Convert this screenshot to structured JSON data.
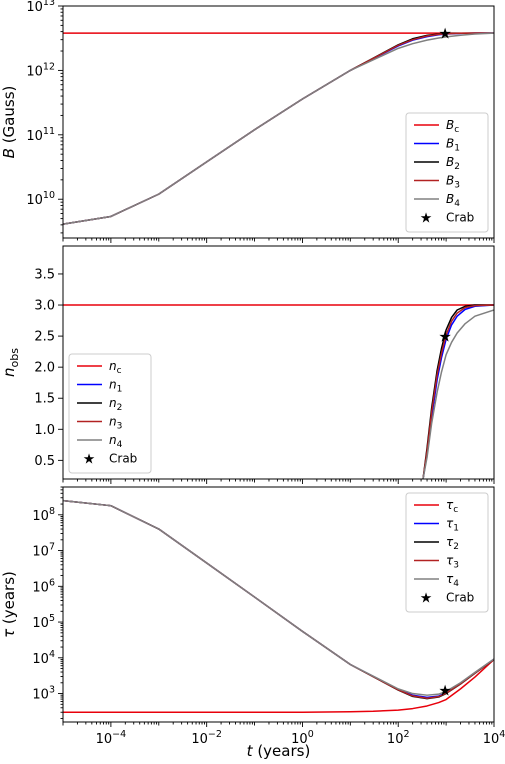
{
  "chart_data": [
    {
      "type": "line",
      "panel": "top",
      "ylabel_var": "B",
      "ylabel_unit": "(Gauss)",
      "xscale": "log",
      "yscale": "log",
      "xlim": [
        1e-05,
        10000
      ],
      "ylim": [
        2500000000,
        10000000000000
      ],
      "ytick_labels": [
        {
          "value": 10000000000,
          "base": "10",
          "exp": "10"
        },
        {
          "value": 100000000000,
          "base": "10",
          "exp": "11"
        },
        {
          "value": 1000000000000,
          "base": "10",
          "exp": "12"
        },
        {
          "value": 10000000000000,
          "base": "10",
          "exp": "13"
        }
      ],
      "legend_loc": "lower right",
      "series": [
        {
          "name": "B",
          "sub": "c",
          "color": "#e8000b",
          "x": [
            1e-05,
            10000
          ],
          "y": [
            3800000000000,
            3800000000000
          ]
        },
        {
          "name": "B",
          "sub": "1",
          "color": "#0000ff",
          "x": [
            1e-05,
            0.0001,
            0.001,
            0.01,
            0.1,
            1,
            10,
            100,
            200,
            400,
            700,
            1000,
            2000,
            4000,
            10000
          ],
          "y": [
            4100000000,
            5400000000,
            12000000000,
            38000000000,
            120000000000,
            360000000000,
            1000000000000,
            2400000000000,
            2950000000000,
            3350000000000,
            3580000000000,
            3680000000000,
            3760000000000,
            3790000000000,
            3800000000000
          ]
        },
        {
          "name": "B",
          "sub": "2",
          "color": "#000000",
          "x": [
            1e-05,
            0.0001,
            0.001,
            0.01,
            0.1,
            1,
            10,
            100,
            200,
            400,
            700,
            1000,
            2000,
            4000,
            10000
          ],
          "y": [
            4100000000,
            5400000000,
            12000000000,
            38000000000,
            120000000000,
            360000000000,
            1000000000000,
            2500000000000,
            3100000000000,
            3500000000000,
            3680000000000,
            3740000000000,
            3780000000000,
            3795000000000,
            3800000000000
          ]
        },
        {
          "name": "B",
          "sub": "3",
          "color": "#b22222",
          "x": [
            1e-05,
            0.0001,
            0.001,
            0.01,
            0.1,
            1,
            10,
            100,
            200,
            400,
            700,
            1000,
            2000,
            4000,
            10000
          ],
          "y": [
            4100000000,
            5400000000,
            12000000000,
            38000000000,
            120000000000,
            360000000000,
            1000000000000,
            2450000000000,
            3000000000000,
            3420000000000,
            3620000000000,
            3710000000000,
            3770000000000,
            3792000000000,
            3800000000000
          ]
        },
        {
          "name": "B",
          "sub": "4",
          "color": "#808080",
          "x": [
            1e-05,
            0.0001,
            0.001,
            0.01,
            0.1,
            1,
            10,
            100,
            200,
            400,
            700,
            1000,
            2000,
            4000,
            10000
          ],
          "y": [
            4100000000,
            5400000000,
            12000000000,
            38000000000,
            120000000000,
            360000000000,
            1000000000000,
            2200000000000,
            2600000000000,
            2950000000000,
            3180000000000,
            3320000000000,
            3520000000000,
            3680000000000,
            3790000000000
          ]
        }
      ],
      "marker": {
        "label": "Crab",
        "x": 950,
        "y": 3800000000000
      }
    },
    {
      "type": "line",
      "panel": "middle",
      "ylabel_var": "n",
      "ylabel_sub": "obs",
      "xscale": "log",
      "yscale": "linear",
      "xlim": [
        1e-05,
        10000
      ],
      "ylim": [
        0.2,
        3.95
      ],
      "ytick_labels": [
        "0.5",
        "1.0",
        "1.5",
        "2.0",
        "2.5",
        "3.0",
        "3.5"
      ],
      "legend_loc": "lower left",
      "series": [
        {
          "name": "n",
          "sub": "c",
          "color": "#e8000b",
          "x": [
            1e-05,
            10000
          ],
          "y": [
            3.0,
            3.0
          ]
        },
        {
          "name": "n",
          "sub": "1",
          "color": "#0000ff",
          "x": [
            330,
            400,
            500,
            650,
            800,
            1000,
            1300,
            1700,
            2500,
            4000,
            10000
          ],
          "y": [
            0.2,
            0.6,
            1.2,
            1.8,
            2.15,
            2.45,
            2.68,
            2.82,
            2.93,
            2.98,
            3.0
          ]
        },
        {
          "name": "n",
          "sub": "2",
          "color": "#000000",
          "x": [
            330,
            400,
            500,
            650,
            800,
            1000,
            1300,
            1700,
            2500,
            4000,
            10000
          ],
          "y": [
            0.2,
            0.7,
            1.35,
            1.95,
            2.3,
            2.6,
            2.8,
            2.92,
            2.98,
            3.0,
            3.0
          ]
        },
        {
          "name": "n",
          "sub": "3",
          "color": "#b22222",
          "x": [
            330,
            400,
            500,
            650,
            800,
            1000,
            1300,
            1700,
            2500,
            4000,
            10000
          ],
          "y": [
            0.2,
            0.65,
            1.28,
            1.88,
            2.22,
            2.52,
            2.74,
            2.87,
            2.96,
            2.99,
            3.0
          ]
        },
        {
          "name": "n",
          "sub": "4",
          "color": "#808080",
          "x": [
            330,
            400,
            500,
            650,
            800,
            1000,
            1300,
            1700,
            2500,
            4000,
            10000
          ],
          "y": [
            0.2,
            0.55,
            1.1,
            1.6,
            1.92,
            2.2,
            2.4,
            2.55,
            2.7,
            2.82,
            2.92
          ]
        }
      ],
      "marker": {
        "label": "Crab",
        "x": 950,
        "y": 2.5
      }
    },
    {
      "type": "line",
      "panel": "bottom",
      "ylabel_var": "τ",
      "ylabel_unit": "(years)",
      "xlabel_var": "t",
      "xlabel_unit": "(years)",
      "xscale": "log",
      "yscale": "log",
      "xlim": [
        1e-05,
        10000
      ],
      "ylim": [
        160,
        600000000
      ],
      "xtick_labels": [
        {
          "value": 0.0001,
          "base": "10",
          "exp": "−4"
        },
        {
          "value": 0.01,
          "base": "10",
          "exp": "−2"
        },
        {
          "value": 1,
          "base": "10",
          "exp": "0"
        },
        {
          "value": 100,
          "base": "10",
          "exp": "2"
        },
        {
          "value": 10000,
          "base": "10",
          "exp": "4"
        }
      ],
      "ytick_labels": [
        {
          "value": 1000,
          "base": "10",
          "exp": "3"
        },
        {
          "value": 10000,
          "base": "10",
          "exp": "4"
        },
        {
          "value": 100000,
          "base": "10",
          "exp": "5"
        },
        {
          "value": 1000000,
          "base": "10",
          "exp": "6"
        },
        {
          "value": 10000000,
          "base": "10",
          "exp": "7"
        },
        {
          "value": 100000000,
          "base": "10",
          "exp": "8"
        }
      ],
      "legend_loc": "upper right",
      "series": [
        {
          "name": "τ",
          "sub": "c",
          "color": "#e8000b",
          "x": [
            1e-05,
            1,
            10,
            30,
            100,
            200,
            400,
            700,
            1000,
            2000,
            4000,
            10000
          ],
          "y": [
            300,
            300,
            310,
            320,
            345,
            380,
            450,
            560,
            680,
            1350,
            2900,
            9000
          ]
        },
        {
          "name": "τ",
          "sub": "1",
          "color": "#0000ff",
          "x": [
            1e-05,
            0.0001,
            0.001,
            0.01,
            0.1,
            1,
            10,
            100,
            200,
            400,
            700,
            1000,
            2000,
            4000,
            10000
          ],
          "y": [
            250000000,
            180000000,
            40000000,
            4500000,
            500000,
            55000,
            6500,
            1300,
            900,
            780,
            850,
            1050,
            1900,
            3800,
            9200
          ]
        },
        {
          "name": "τ",
          "sub": "2",
          "color": "#000000",
          "x": [
            1e-05,
            0.0001,
            0.001,
            0.01,
            0.1,
            1,
            10,
            100,
            200,
            400,
            700,
            1000,
            2000,
            4000,
            10000
          ],
          "y": [
            250000000,
            180000000,
            40000000,
            4500000,
            500000,
            55000,
            6500,
            1250,
            830,
            720,
            800,
            1000,
            1850,
            3700,
            9000
          ]
        },
        {
          "name": "τ",
          "sub": "3",
          "color": "#b22222",
          "x": [
            1e-05,
            0.0001,
            0.001,
            0.01,
            0.1,
            1,
            10,
            100,
            200,
            400,
            700,
            1000,
            2000,
            4000,
            10000
          ],
          "y": [
            250000000,
            180000000,
            40000000,
            4500000,
            500000,
            55000,
            6500,
            1270,
            860,
            740,
            820,
            1020,
            1880,
            3750,
            9100
          ]
        },
        {
          "name": "τ",
          "sub": "4",
          "color": "#808080",
          "x": [
            1e-05,
            0.0001,
            0.001,
            0.01,
            0.1,
            1,
            10,
            100,
            200,
            400,
            700,
            1000,
            2000,
            4000,
            10000
          ],
          "y": [
            250000000,
            180000000,
            40000000,
            4500000,
            500000,
            55000,
            6500,
            1350,
            1000,
            900,
            960,
            1150,
            2000,
            3900,
            9300
          ]
        }
      ],
      "marker": {
        "label": "Crab",
        "x": 950,
        "y": 1250
      }
    }
  ]
}
